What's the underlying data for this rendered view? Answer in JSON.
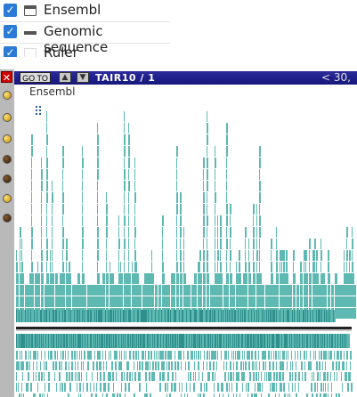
{
  "tracks": [
    {
      "label": "Ensembl",
      "checked": true,
      "icon": "window-icon"
    },
    {
      "label": "Genomic sequence",
      "checked": true,
      "icon": "line-icon"
    },
    {
      "label": "Ruler",
      "checked": true,
      "icon": "ruler-icon"
    }
  ],
  "browser": {
    "goto_label": "GO TO",
    "assembly_label": "TAIR10 / 1",
    "position_label": "<  30,",
    "track_name": "Ensembl"
  },
  "colors": {
    "feature": "#5fb9b3",
    "feature_dark": "#2f8f8a",
    "toolbar": "#1c1c8a",
    "checkbox": "#2b7bd6"
  }
}
